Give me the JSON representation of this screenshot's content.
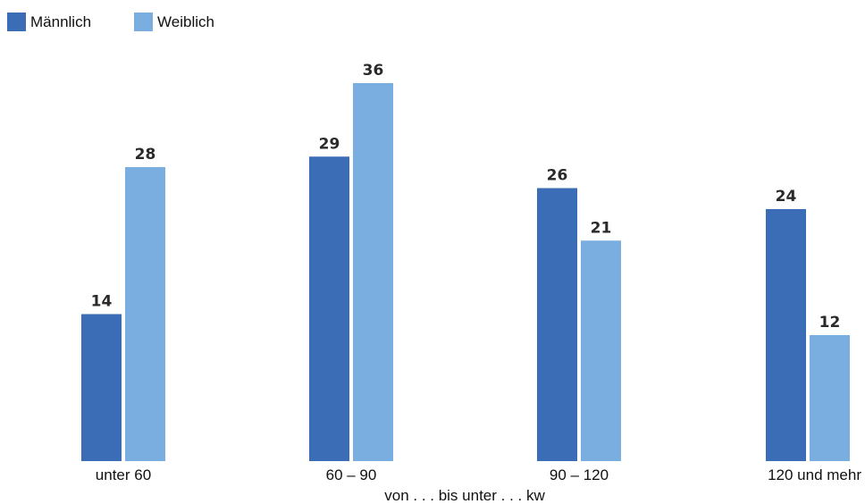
{
  "chart_data": {
    "type": "bar",
    "categories": [
      "unter 60",
      "60 – 90",
      "90 – 120",
      "120 und mehr"
    ],
    "series": [
      {
        "name": "Männlich",
        "values": [
          14,
          29,
          26,
          24
        ],
        "color": "#3a6db5"
      },
      {
        "name": "Weiblich",
        "values": [
          28,
          36,
          21,
          12
        ],
        "color": "#7aaee0"
      }
    ],
    "xlabel": "von . . . bis unter . . . kw",
    "ylabel": "",
    "ylim": [
      0,
      40
    ],
    "grid": false,
    "legend_position": "top-left"
  }
}
